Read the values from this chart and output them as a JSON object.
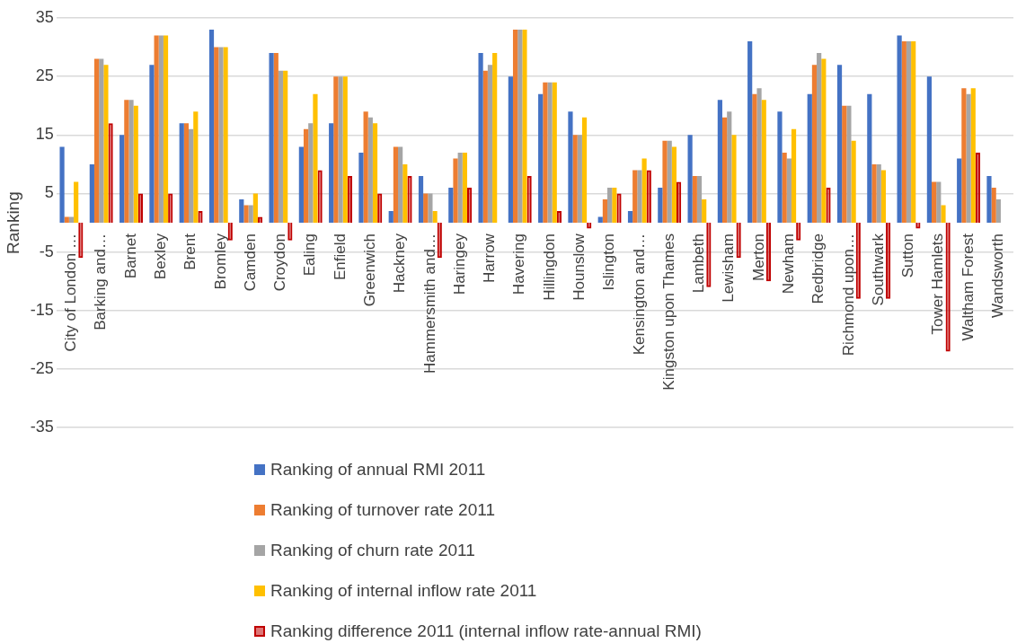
{
  "chart_data": {
    "type": "bar",
    "ylabel": "Ranking",
    "categories": [
      "City of London …",
      "Barking and…",
      "Barnet",
      "Bexley",
      "Brent",
      "Bromley",
      "Camden",
      "Croydon",
      "Ealing",
      "Enfield",
      "Greenwich",
      "Hackney",
      "Hammersmith and…",
      "Haringey",
      "Harrow",
      "Havering",
      "Hillingdon",
      "Hounslow",
      "Islington",
      "Kensington and…",
      "Kingston upon Thames",
      "Lambeth",
      "Lewisham",
      "Merton",
      "Newham",
      "Redbridge",
      "Richmond upon…",
      "Southwark",
      "Sutton",
      "Tower Hamlets",
      "Waltham Forest",
      "Wandsworth"
    ],
    "series": [
      {
        "name": "Ranking of annual RMI 2011",
        "color": "#4472c4",
        "values": [
          13,
          10,
          15,
          27,
          17,
          33,
          4,
          29,
          13,
          17,
          12,
          2,
          8,
          6,
          29,
          25,
          22,
          19,
          1,
          2,
          6,
          15,
          21,
          31,
          19,
          22,
          27,
          22,
          32,
          25,
          11,
          8
        ]
      },
      {
        "name": "Ranking of turnover rate 2011",
        "color": "#ed7d31",
        "values": [
          1,
          28,
          21,
          32,
          17,
          30,
          3,
          29,
          16,
          25,
          19,
          13,
          5,
          11,
          26,
          33,
          24,
          15,
          4,
          9,
          14,
          8,
          18,
          22,
          12,
          27,
          20,
          10,
          31,
          7,
          23,
          6
        ]
      },
      {
        "name": "Ranking of churn rate 2011",
        "color": "#a5a5a5",
        "values": [
          1,
          28,
          21,
          32,
          16,
          30,
          3,
          26,
          17,
          25,
          18,
          13,
          5,
          12,
          27,
          33,
          24,
          15,
          6,
          9,
          14,
          8,
          19,
          23,
          11,
          29,
          20,
          10,
          31,
          7,
          22,
          4
        ]
      },
      {
        "name": "Ranking of internal inflow rate 2011",
        "color": "#ffc000",
        "values": [
          7,
          27,
          20,
          32,
          19,
          30,
          5,
          26,
          22,
          25,
          17,
          10,
          2,
          12,
          29,
          33,
          24,
          18,
          6,
          11,
          13,
          4,
          15,
          21,
          16,
          28,
          14,
          9,
          31,
          3,
          23,
          null
        ]
      },
      {
        "name": "Ranking difference 2011  (internal inflow rate-annual RMI)",
        "color": "#c00000",
        "values": [
          -6,
          17,
          5,
          5,
          2,
          -3,
          1,
          -3,
          9,
          8,
          5,
          8,
          -6,
          6,
          0,
          8,
          2,
          -1,
          5,
          9,
          7,
          -11,
          -6,
          -10,
          -3,
          6,
          -13,
          -13,
          -1,
          -22,
          12,
          null
        ]
      }
    ],
    "ylim": [
      -35,
      35
    ],
    "yticks": [
      -35,
      -25,
      -15,
      -5,
      5,
      15,
      25,
      35
    ],
    "grid": "y",
    "legend": "bottom"
  }
}
